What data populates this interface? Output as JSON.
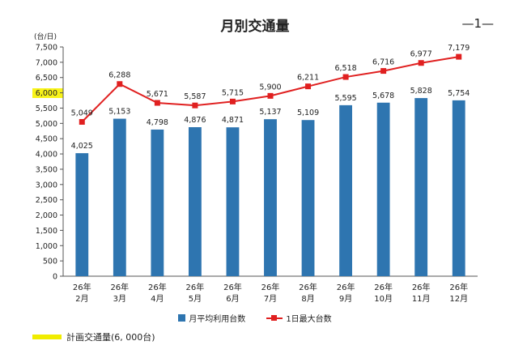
{
  "page": {
    "title": "月別交通量",
    "page_number": "—1—",
    "unit_label": "(台/日)"
  },
  "legend": {
    "bar_label": "月平均利用台数",
    "line_label": "1日最大台数"
  },
  "plan_note": {
    "label": "計画交通量(6, 000台)",
    "highlight_color": "#f7f200"
  },
  "colors": {
    "bar": "#2e75b0",
    "line": "#e02020"
  },
  "chart_data": {
    "type": "bar",
    "title": "月別交通量",
    "categories": [
      [
        "26年",
        "2月"
      ],
      [
        "26年",
        "3月"
      ],
      [
        "26年",
        "4月"
      ],
      [
        "26年",
        "5月"
      ],
      [
        "26年",
        "6月"
      ],
      [
        "26年",
        "7月"
      ],
      [
        "26年",
        "8月"
      ],
      [
        "26年",
        "9月"
      ],
      [
        "26年",
        "10月"
      ],
      [
        "26年",
        "11月"
      ],
      [
        "26年",
        "12月"
      ]
    ],
    "series": [
      {
        "name": "月平均利用台数",
        "type": "bar",
        "values": [
          4025,
          5153,
          4798,
          4876,
          4871,
          5137,
          5109,
          5595,
          5678,
          5828,
          5754
        ],
        "labels": [
          "4,025",
          "5,153",
          "4,798",
          "4,876",
          "4,871",
          "5,137",
          "5,109",
          "5,595",
          "5,678",
          "5,828",
          "5,754"
        ]
      },
      {
        "name": "1日最大台数",
        "type": "line",
        "values": [
          5049,
          6288,
          5671,
          5587,
          5715,
          5900,
          6211,
          6518,
          6716,
          6977,
          7179
        ],
        "labels": [
          "5,049",
          "6,288",
          "5,671",
          "5,587",
          "5,715",
          "5,900",
          "6,211",
          "6,518",
          "6,716",
          "6,977",
          "7,179"
        ]
      }
    ],
    "ylim": [
      0,
      7500
    ],
    "yticks": [
      "0",
      "500",
      "1,000",
      "1,500",
      "2,000",
      "2,500",
      "3,000",
      "3,500",
      "4,000",
      "4,500",
      "5,000",
      "5,500",
      "6,000",
      "6,500",
      "7,000",
      "7,500"
    ],
    "ytick_values": [
      0,
      500,
      1000,
      1500,
      2000,
      2500,
      3000,
      3500,
      4000,
      4500,
      5000,
      5500,
      6000,
      6500,
      7000,
      7500
    ],
    "highlighted_ytick": 6000,
    "grid": false,
    "legend_position": "bottom"
  }
}
